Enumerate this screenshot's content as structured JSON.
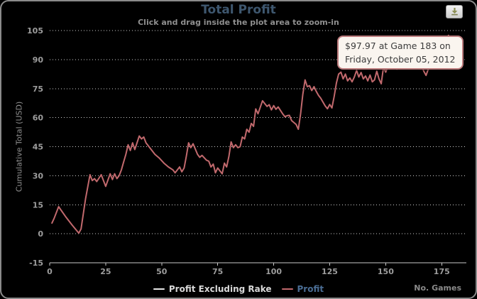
{
  "header": {
    "title": "Total Profit",
    "subtitle": "Click and drag inside the plot area to zoom-in"
  },
  "export_button": {
    "icon": "download-icon"
  },
  "tooltip": {
    "line1": "$97.97 at Game 183 on",
    "line2": "Friday, October 05, 2012"
  },
  "legend": {
    "items": [
      {
        "label": "Profit Excluding Rake",
        "swatch_color": "#e8e8e8",
        "text_color": "#d8d8d8"
      },
      {
        "label": "Profit",
        "swatch_color": "#c1696d",
        "text_color": "#4a6d94"
      }
    ]
  },
  "colors": {
    "background": "#000000",
    "panel_border": "#8b8b8b",
    "title": "#3E576F",
    "profit_line": "#c1696d",
    "grid": "#cccccc",
    "axis": "#c8c8c8",
    "tick_label": "#9d9d9d",
    "tooltip_bg": "#faf5ef",
    "tooltip_border": "#bb7a7c"
  },
  "chart_data": {
    "type": "line",
    "title": "Total Profit",
    "subtitle": "Click and drag inside the plot area to zoom-in",
    "xlabel": "No. Games",
    "ylabel": "Cumulative Total (USD)",
    "xlim": [
      0,
      186
    ],
    "ylim": [
      -15,
      105
    ],
    "x_ticks": [
      0,
      25,
      50,
      75,
      100,
      125,
      150,
      175
    ],
    "y_ticks": [
      -15,
      0,
      15,
      30,
      45,
      60,
      75,
      90,
      105
    ],
    "grid": "horizontal dotted",
    "legend_position": "bottom",
    "series": [
      {
        "name": "Profit Excluding Rake",
        "color": "#e8e8e8",
        "visible": false,
        "points": []
      },
      {
        "name": "Profit",
        "color": "#c1696d",
        "visible": true,
        "points": [
          [
            1,
            5.5
          ],
          [
            2,
            8
          ],
          [
            4,
            14
          ],
          [
            7,
            9
          ],
          [
            10,
            4.5
          ],
          [
            13,
            0.3
          ],
          [
            14,
            2.5
          ],
          [
            16,
            18
          ],
          [
            18,
            30.5
          ],
          [
            19,
            27.5
          ],
          [
            20,
            28.5
          ],
          [
            21,
            27
          ],
          [
            23,
            30.5
          ],
          [
            25,
            24.5
          ],
          [
            27,
            31
          ],
          [
            28,
            28
          ],
          [
            29,
            31
          ],
          [
            30,
            28.5
          ],
          [
            31,
            30
          ],
          [
            32,
            33
          ],
          [
            33,
            37
          ],
          [
            34,
            41
          ],
          [
            35,
            46
          ],
          [
            36,
            43
          ],
          [
            37,
            47
          ],
          [
            38,
            43.5
          ],
          [
            40,
            50.5
          ],
          [
            41,
            49
          ],
          [
            42,
            50
          ],
          [
            43,
            47
          ],
          [
            45,
            44
          ],
          [
            47,
            41
          ],
          [
            49,
            39
          ],
          [
            51,
            36.5
          ],
          [
            53,
            34.5
          ],
          [
            55,
            33
          ],
          [
            56,
            31.5
          ],
          [
            58,
            34.5
          ],
          [
            59,
            32
          ],
          [
            60,
            34
          ],
          [
            61,
            40
          ],
          [
            62,
            47
          ],
          [
            63,
            44.5
          ],
          [
            64,
            46.5
          ],
          [
            66,
            41
          ],
          [
            67,
            39.5
          ],
          [
            68,
            40.5
          ],
          [
            70,
            38
          ],
          [
            71,
            37.5
          ],
          [
            72,
            34.5
          ],
          [
            73,
            36
          ],
          [
            74,
            31.5
          ],
          [
            75,
            34
          ],
          [
            77,
            31
          ],
          [
            78,
            36.5
          ],
          [
            79,
            34.5
          ],
          [
            80,
            40
          ],
          [
            81,
            47.5
          ],
          [
            82,
            44.5
          ],
          [
            83,
            46
          ],
          [
            84,
            44.5
          ],
          [
            85,
            45
          ],
          [
            86,
            50
          ],
          [
            87,
            49
          ],
          [
            88,
            54
          ],
          [
            89,
            52.5
          ],
          [
            90,
            57
          ],
          [
            91,
            55.5
          ],
          [
            92,
            64.5
          ],
          [
            93,
            62
          ],
          [
            95,
            68.7
          ],
          [
            97,
            65.8
          ],
          [
            98,
            66.7
          ],
          [
            99,
            64
          ],
          [
            100,
            66.2
          ],
          [
            101,
            64.3
          ],
          [
            102,
            65.5
          ],
          [
            104,
            62
          ],
          [
            105,
            60.5
          ],
          [
            106,
            61
          ],
          [
            107,
            61.2
          ],
          [
            108,
            58.5
          ],
          [
            110,
            56.5
          ],
          [
            111,
            54
          ],
          [
            112,
            62
          ],
          [
            113,
            72
          ],
          [
            114,
            79.5
          ],
          [
            115,
            76
          ],
          [
            116,
            76.5
          ],
          [
            117,
            74
          ],
          [
            118,
            76
          ],
          [
            119,
            73.5
          ],
          [
            120,
            71.5
          ],
          [
            121,
            70
          ],
          [
            122,
            68
          ],
          [
            123,
            66
          ],
          [
            124,
            64.6
          ],
          [
            125,
            66.8
          ],
          [
            126,
            65
          ],
          [
            127,
            71
          ],
          [
            128,
            78
          ],
          [
            129,
            82.5
          ],
          [
            130,
            83.5
          ],
          [
            131,
            80
          ],
          [
            132,
            82.5
          ],
          [
            133,
            79
          ],
          [
            134,
            80.5
          ],
          [
            135,
            78.5
          ],
          [
            136,
            81
          ],
          [
            137,
            84.4
          ],
          [
            138,
            81
          ],
          [
            139,
            83.3
          ],
          [
            140,
            80
          ],
          [
            141,
            81.5
          ],
          [
            142,
            79
          ],
          [
            143,
            82
          ],
          [
            144,
            78.5
          ],
          [
            145,
            79.5
          ],
          [
            146,
            84
          ],
          [
            147,
            80
          ],
          [
            148,
            77.5
          ],
          [
            149,
            86
          ],
          [
            150,
            83.5
          ],
          [
            151,
            86.5
          ],
          [
            152,
            89
          ],
          [
            153,
            86
          ],
          [
            154,
            88
          ],
          [
            155,
            85
          ],
          [
            156,
            90
          ],
          [
            157,
            87.5
          ],
          [
            158,
            91
          ],
          [
            159,
            88.5
          ],
          [
            160,
            92
          ],
          [
            161,
            89.5
          ],
          [
            162,
            93
          ],
          [
            163,
            90
          ],
          [
            164,
            94
          ],
          [
            165,
            91
          ],
          [
            166,
            87
          ],
          [
            167,
            84
          ],
          [
            168,
            81.8
          ],
          [
            169,
            85
          ],
          [
            170,
            88
          ],
          [
            171,
            86
          ],
          [
            172,
            91
          ],
          [
            173,
            89
          ],
          [
            174,
            94
          ],
          [
            175,
            92
          ],
          [
            176,
            97
          ],
          [
            177,
            100
          ],
          [
            178,
            102.5
          ],
          [
            179,
            99.5
          ],
          [
            180,
            101
          ],
          [
            181,
            98
          ],
          [
            182,
            100
          ],
          [
            183,
            97.97
          ]
        ]
      }
    ],
    "end_marker": {
      "game": 183,
      "value": 97.97
    },
    "tooltip_point": {
      "value_text": "$97.97",
      "game": 183,
      "date": "Friday, October 05, 2012"
    }
  }
}
